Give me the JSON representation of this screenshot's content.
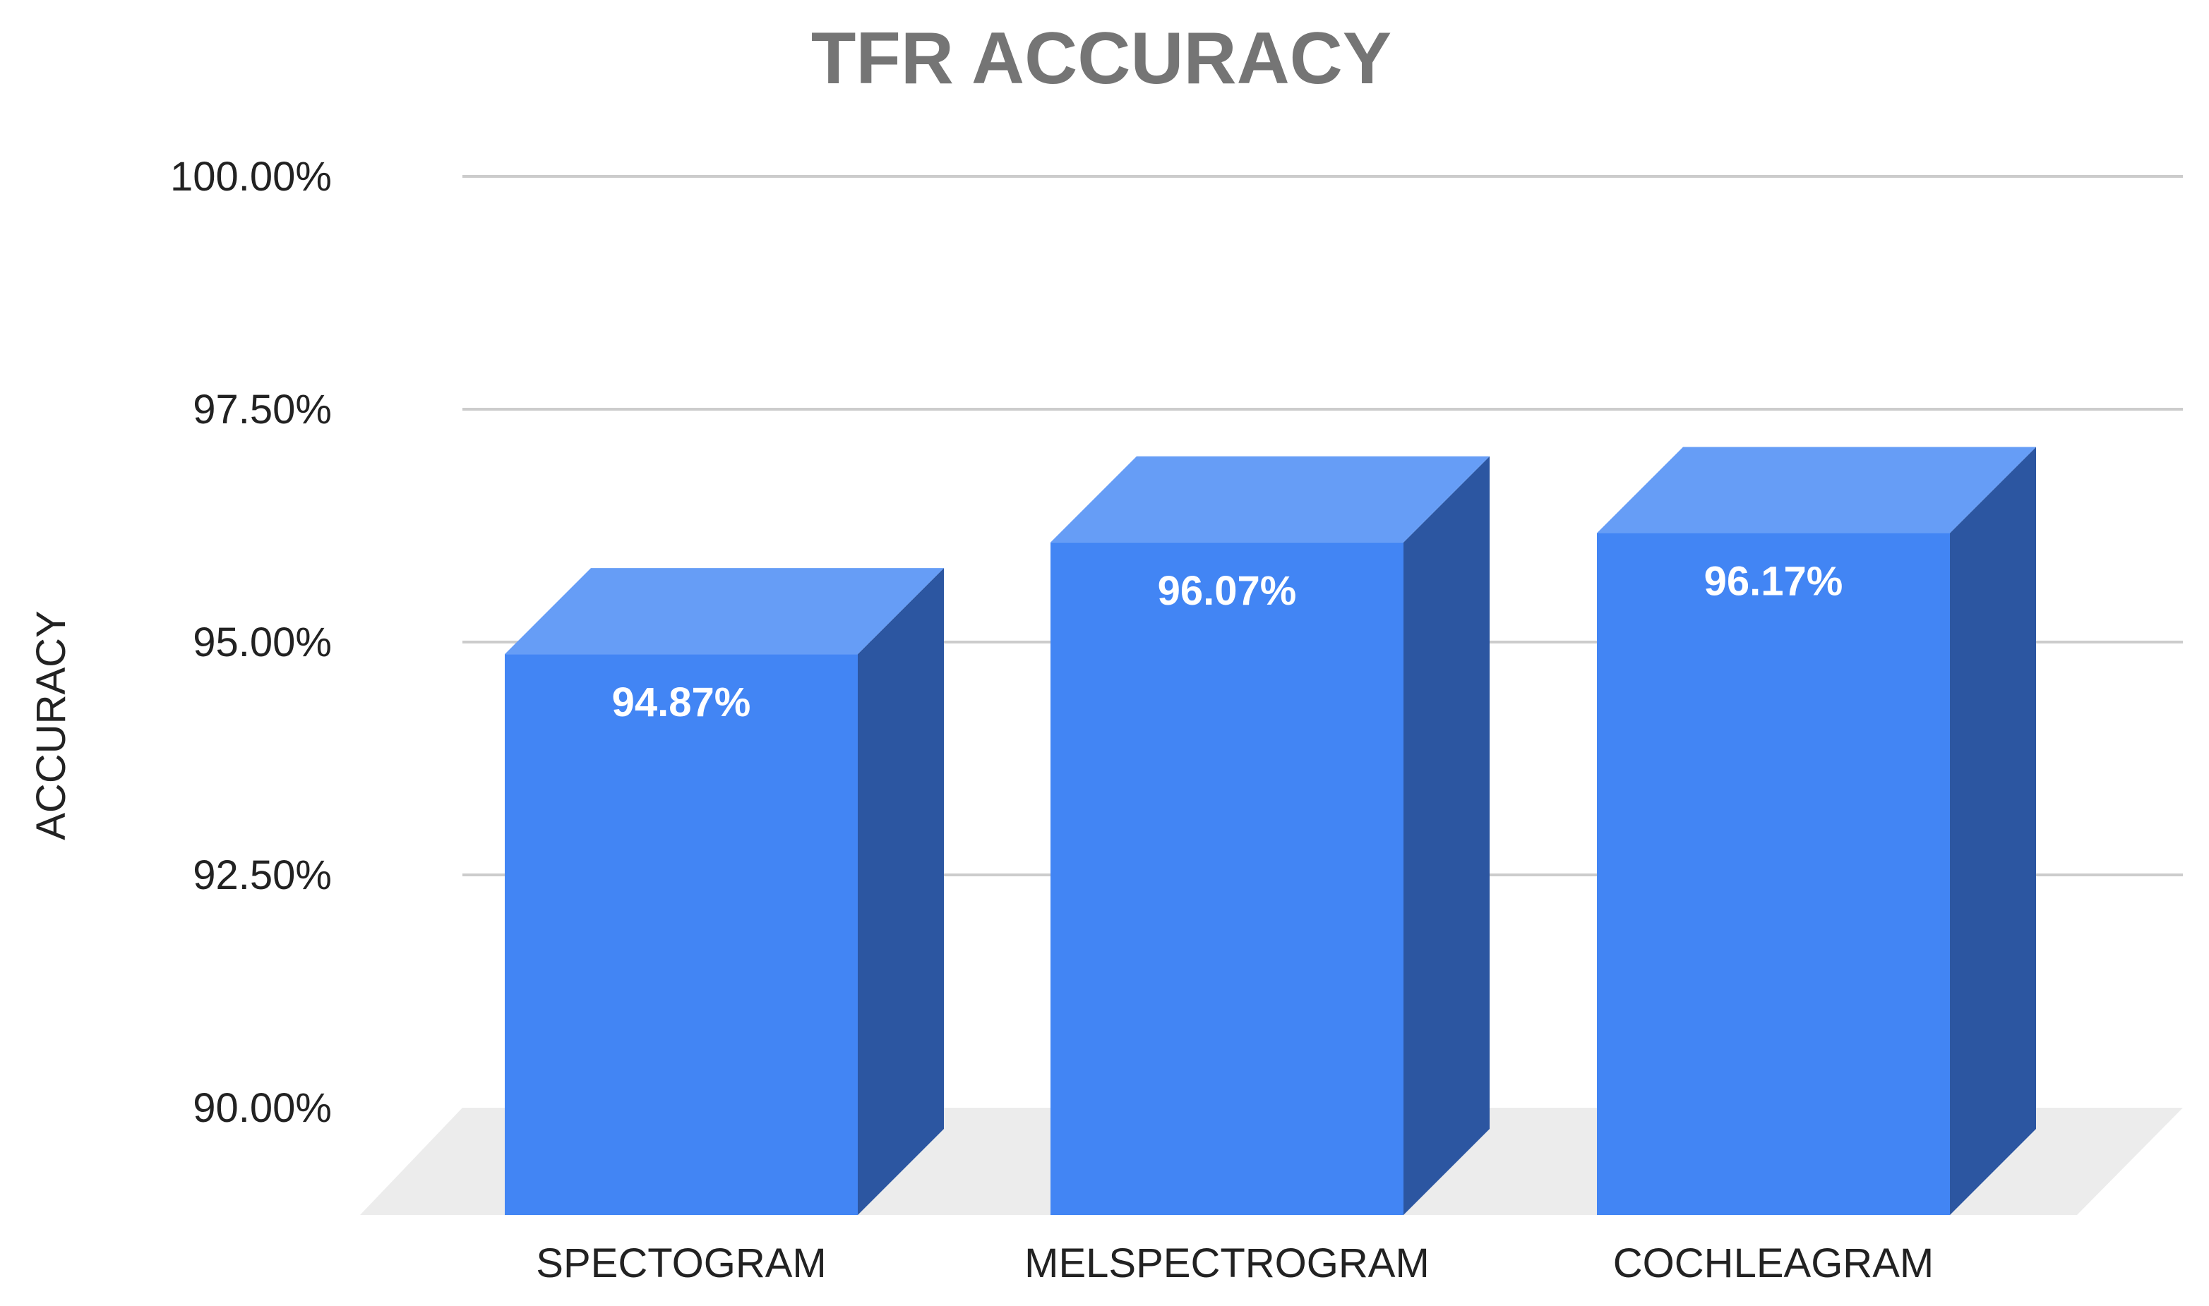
{
  "chart_data": {
    "type": "bar",
    "style": "3d-column",
    "title": "TFR ACCURACY",
    "xlabel": "",
    "ylabel": "ACCURACY",
    "categories": [
      "SPECTOGRAM",
      "MELSPECTROGRAM",
      "COCHLEAGRAM"
    ],
    "values": [
      94.87,
      96.07,
      96.17
    ],
    "data_labels": [
      "94.87%",
      "96.07%",
      "96.17%"
    ],
    "ylim": [
      90,
      100
    ],
    "yticks": [
      90,
      92.5,
      95,
      97.5,
      100
    ],
    "ytick_labels": [
      "90.00%",
      "92.50%",
      "95.00%",
      "97.50%",
      "100.00%"
    ],
    "grid": true,
    "legend": "none",
    "colors": {
      "bar_front": "#4285f4",
      "bar_top": "#669df6",
      "bar_side": "#2c56a1",
      "floor": "#ececec",
      "grid": "#cccccc",
      "title": "#757575",
      "text": "#222222",
      "data_label": "#ffffff"
    }
  }
}
